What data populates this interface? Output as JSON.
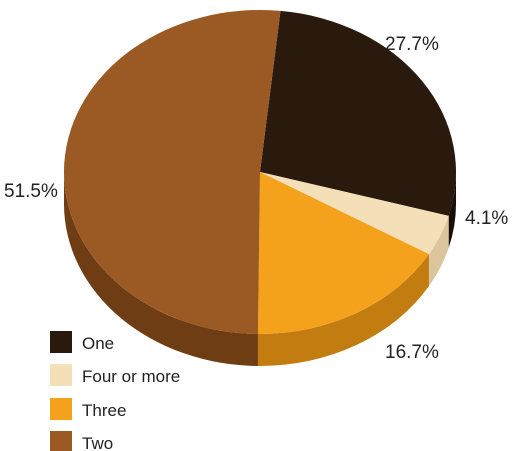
{
  "chart_data": {
    "type": "pie",
    "style": "3d",
    "slices": [
      {
        "label": "One",
        "value": 27.7,
        "display": "27.7%",
        "color": "#2a1a0e",
        "side_color": "#1a0f07"
      },
      {
        "label": "Four or more",
        "value": 4.1,
        "display": "4.1%",
        "color": "#f5dfb8",
        "side_color": "#dcc49c"
      },
      {
        "label": "Three",
        "value": 16.7,
        "display": "16.7%",
        "color": "#f4a11c",
        "side_color": "#c27c10"
      },
      {
        "label": "Two",
        "value": 51.5,
        "display": "51.5%",
        "color": "#9b5a24",
        "side_color": "#6e3d13"
      }
    ],
    "legend": [
      "One",
      "Four or more",
      "Three",
      "Two"
    ],
    "legend_position": "bottom-left"
  }
}
